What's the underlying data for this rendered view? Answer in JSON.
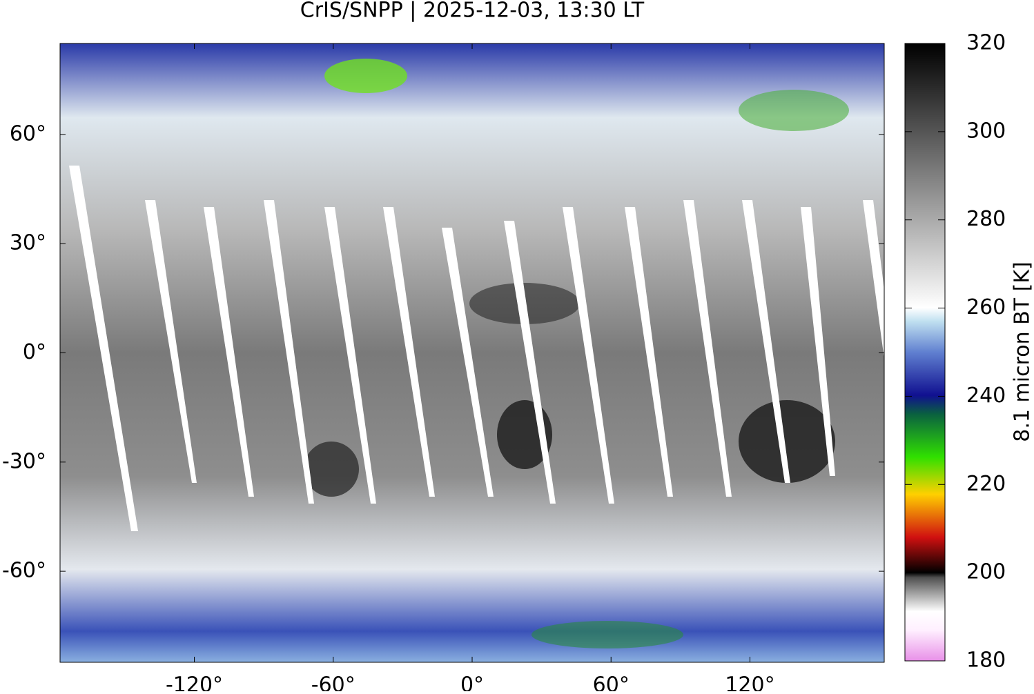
{
  "chart_data": {
    "type": "map",
    "title": "CrIS/SNPP | 2025-12-03, 13:30 LT",
    "xlim": [
      -178,
      178
    ],
    "xticks": [
      {
        "value": -120,
        "label": "-120°"
      },
      {
        "value": -60,
        "label": "-60°"
      },
      {
        "value": 0,
        "label": "0°"
      },
      {
        "value": 60,
        "label": "60°"
      },
      {
        "value": 120,
        "label": "120°"
      }
    ],
    "ylim": [
      -85,
      85
    ],
    "yticks": [
      {
        "value": -60,
        "label": "-60°"
      },
      {
        "value": -30,
        "label": "-30°"
      },
      {
        "value": 0,
        "label": "0°"
      },
      {
        "value": 30,
        "label": "30°"
      },
      {
        "value": 60,
        "label": "60°"
      }
    ],
    "colorbar": {
      "label": "8.1 micron BT [K]",
      "lim": [
        180,
        320
      ],
      "ticks": [
        180,
        200,
        220,
        240,
        260,
        280,
        300,
        320
      ]
    }
  }
}
